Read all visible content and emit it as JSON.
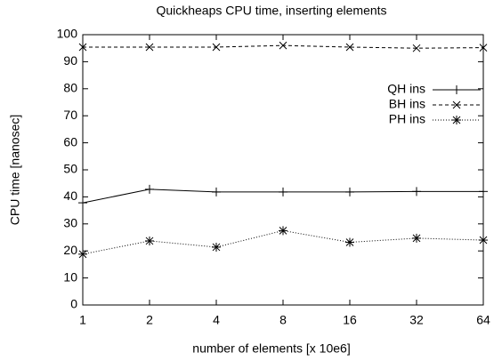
{
  "chart_data": {
    "type": "line",
    "title": "Quickheaps CPU time, inserting elements",
    "x_label": "number of elements [x 10e6]",
    "y_label": "CPU time [nanosec]",
    "x": [
      1,
      2,
      4,
      8,
      16,
      32,
      64
    ],
    "xscale": "log",
    "xlim": [
      1,
      64
    ],
    "xticks": [
      1,
      2,
      4,
      8,
      16,
      32,
      64
    ],
    "ylim": [
      0,
      100
    ],
    "yticks": [
      0,
      10,
      20,
      30,
      40,
      50,
      60,
      70,
      80,
      90,
      100
    ],
    "legend": "upper right",
    "series": [
      {
        "name": "QH ins",
        "color": "#000000",
        "dash": "solid",
        "marker": "plus",
        "values": [
          37.8,
          42.8,
          41.8,
          41.8,
          41.8,
          42,
          42
        ]
      },
      {
        "name": "BH ins",
        "color": "#000000",
        "dash": "dashed",
        "marker": "cross",
        "values": [
          95.4,
          95.4,
          95.4,
          96,
          95.4,
          95,
          95.2
        ]
      },
      {
        "name": "PH ins",
        "color": "#000000",
        "dash": "dotted",
        "marker": "star",
        "values": [
          18.8,
          23.7,
          21.4,
          27.5,
          23.2,
          24.7,
          24
        ]
      }
    ]
  }
}
